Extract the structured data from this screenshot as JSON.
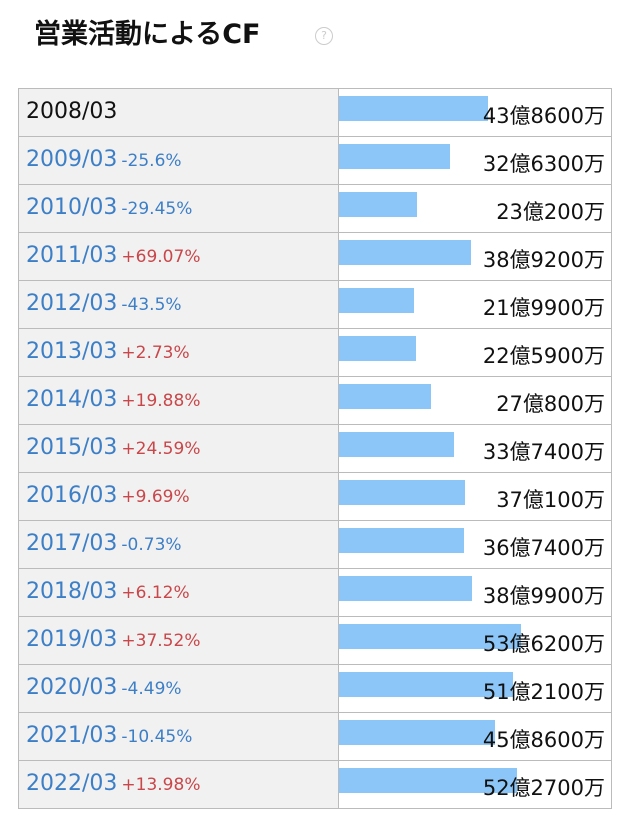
{
  "title": "営業活動によるCF",
  "rows": [
    {
      "period": "2008/03",
      "amount": 43.86,
      "amount_label": "43億8600万"
    },
    {
      "period": "2009/03",
      "change": "-25.6%",
      "amount": 32.63,
      "amount_label": "32億6300万"
    },
    {
      "period": "2010/03",
      "change": "-29.45%",
      "amount": 23.02,
      "amount_label": "23億200万"
    },
    {
      "period": "2011/03",
      "change": "+69.07%",
      "amount": 38.92,
      "amount_label": "38億9200万"
    },
    {
      "period": "2012/03",
      "change": "-43.5%",
      "amount": 21.99,
      "amount_label": "21億9900万"
    },
    {
      "period": "2013/03",
      "change": "+2.73%",
      "amount": 22.59,
      "amount_label": "22億5900万"
    },
    {
      "period": "2014/03",
      "change": "+19.88%",
      "amount": 27.08,
      "amount_label": "27億800万"
    },
    {
      "period": "2015/03",
      "change": "+24.59%",
      "amount": 33.74,
      "amount_label": "33億7400万"
    },
    {
      "period": "2016/03",
      "change": "+9.69%",
      "amount": 37.01,
      "amount_label": "37億100万"
    },
    {
      "period": "2017/03",
      "change": "-0.73%",
      "amount": 36.74,
      "amount_label": "36億7400万"
    },
    {
      "period": "2018/03",
      "change": "+6.12%",
      "amount": 38.99,
      "amount_label": "38億9900万"
    },
    {
      "period": "2019/03",
      "change": "+37.52%",
      "amount": 53.62,
      "amount_label": "53億6200万"
    },
    {
      "period": "2020/03",
      "change": "-4.49%",
      "amount": 51.21,
      "amount_label": "51億2100万"
    },
    {
      "period": "2021/03",
      "change": "-10.45%",
      "amount": 45.86,
      "amount_label": "45億8600万"
    },
    {
      "period": "2022/03",
      "change": "+13.98%",
      "amount": 52.27,
      "amount_label": "52億2700万"
    }
  ]
}
